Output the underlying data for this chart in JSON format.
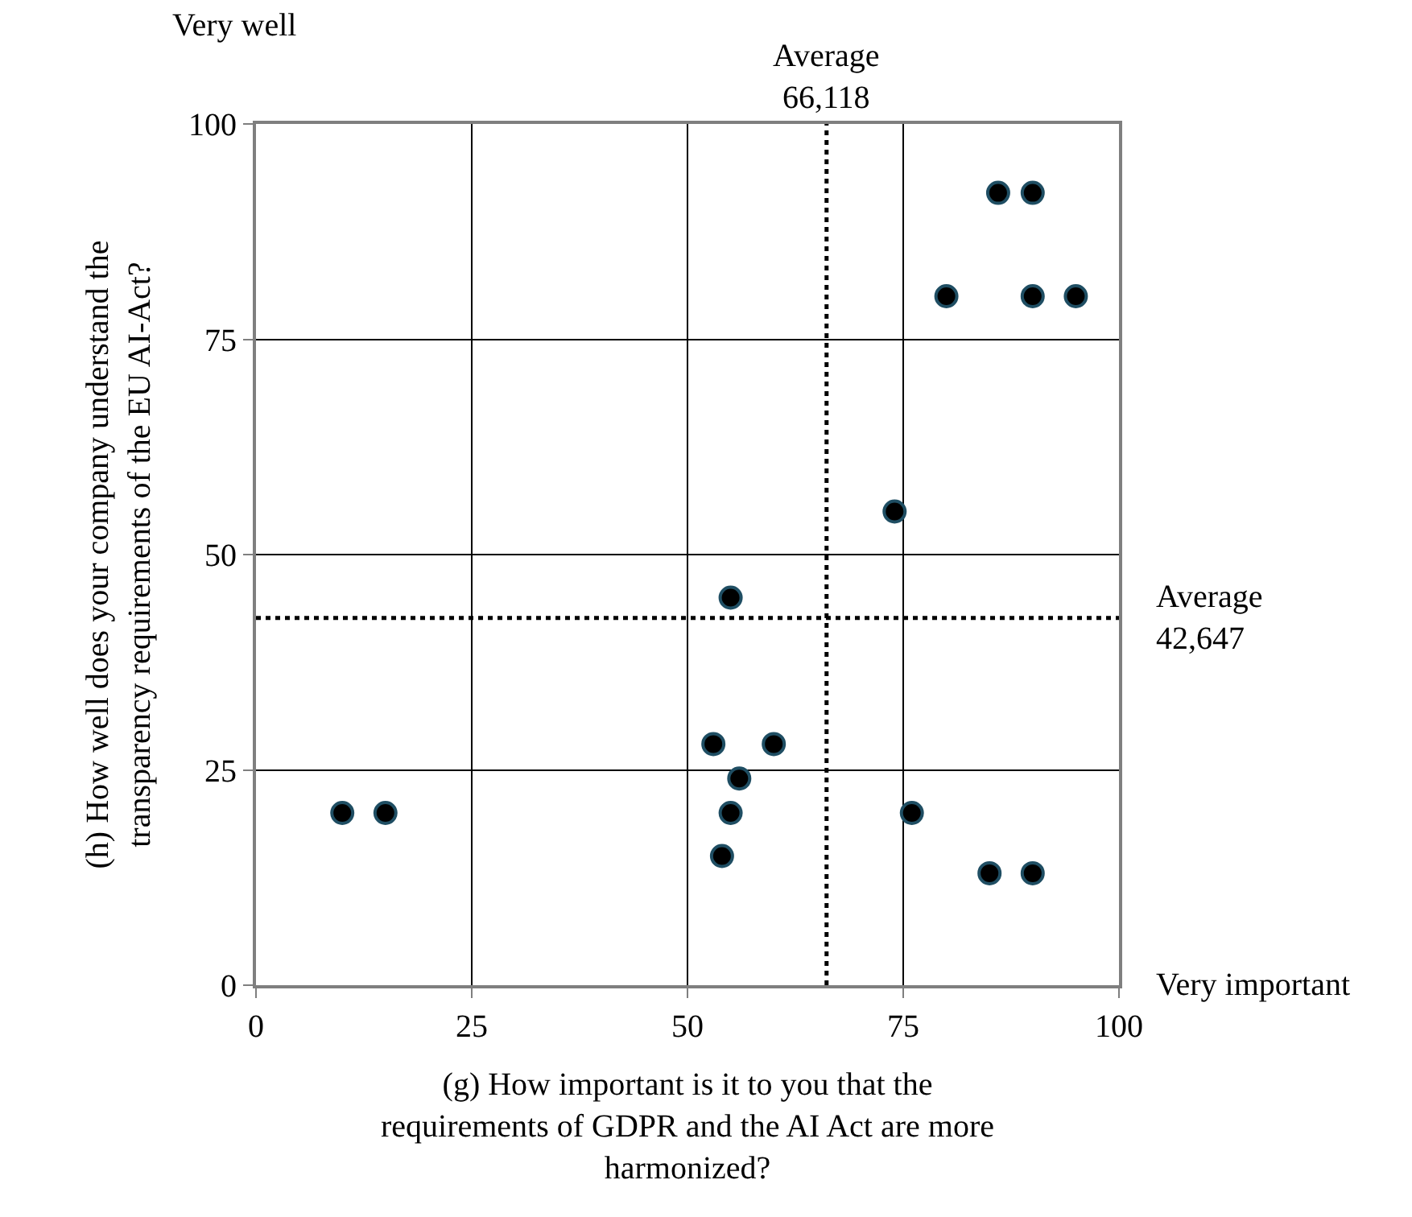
{
  "chart_data": {
    "type": "scatter",
    "xlabel": "(g) How important is it to you that the\nrequirements of GDPR and the AI Act are more\nharmonized?",
    "ylabel": "(h) How well does your company understand the\ntransparency requirements of the EU AI-Act?",
    "x": [
      10,
      15,
      53,
      54,
      55,
      55,
      56,
      60,
      74,
      76,
      80,
      85,
      86,
      90,
      90,
      90,
      95
    ],
    "series": [
      {
        "color": "#000000",
        "values": [
          20,
          20,
          28,
          15,
          45,
          20,
          24,
          28,
          55,
          20,
          80,
          13,
          92,
          92,
          80,
          13,
          80
        ]
      }
    ],
    "xlim": [
      0,
      100
    ],
    "ylim": [
      0,
      100
    ],
    "xticks": [
      0,
      25,
      50,
      75,
      100
    ],
    "yticks": [
      0,
      25,
      50,
      75,
      100
    ],
    "grid": true,
    "marker": "circle",
    "ref_lines": [
      {
        "axis": "x",
        "value": 66.118,
        "label": "Average\n66,118",
        "color": "#000000",
        "line_style": "dotted"
      },
      {
        "axis": "y",
        "value": 42.647,
        "label": "Average\n42,647",
        "color": "#000000",
        "line_style": "dotted"
      }
    ],
    "annotations": [
      "Very well",
      "Very important"
    ]
  }
}
